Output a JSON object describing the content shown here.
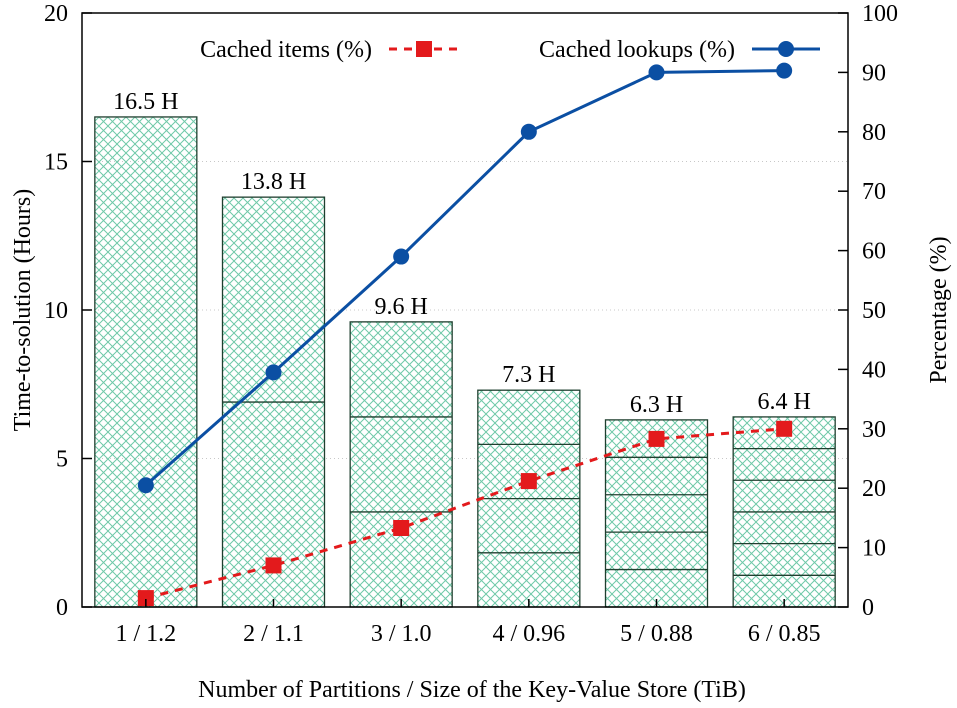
{
  "chart_data": {
    "type": "bar",
    "categories": [
      "1 / 1.2",
      "2 / 1.1",
      "3 / 1.0",
      "4 / 0.96",
      "5 / 0.88",
      "6 / 0.85"
    ],
    "partitions": [
      1,
      2,
      3,
      4,
      5,
      6
    ],
    "bar_values": [
      16.5,
      13.8,
      9.6,
      7.3,
      6.3,
      6.4
    ],
    "bar_labels": [
      "16.5 H",
      "13.8 H",
      "9.6 H",
      "7.3 H",
      "6.3 H",
      "6.4 H"
    ],
    "xlabel": "Number of Partitions / Size of the Key-Value Store (TiB)",
    "ylabel": "Time-to-solution (Hours)",
    "y2label": "Percentage (%)",
    "ylim": [
      0,
      20
    ],
    "y2lim": [
      0,
      100
    ],
    "yticks": [
      0,
      5,
      10,
      15,
      20
    ],
    "y2ticks": [
      0,
      10,
      20,
      30,
      40,
      50,
      60,
      70,
      80,
      90,
      100
    ],
    "grid": "horizontal dotted",
    "legend_position": "top",
    "series": [
      {
        "name": "Cached items (%)",
        "axis": "right",
        "marker": "square",
        "style": "dashed",
        "color": "#e31a1c",
        "values": [
          1.5,
          7,
          13.3,
          21.2,
          28.3,
          30
        ]
      },
      {
        "name": "Cached lookups (%)",
        "axis": "right",
        "marker": "circle",
        "style": "solid",
        "color": "#0b4fa3",
        "values": [
          20.5,
          39.5,
          59,
          80,
          90,
          90.3
        ]
      }
    ],
    "bar_fill_color": "#6fc9a8",
    "bar_edge_color": "#1f3f2f"
  }
}
